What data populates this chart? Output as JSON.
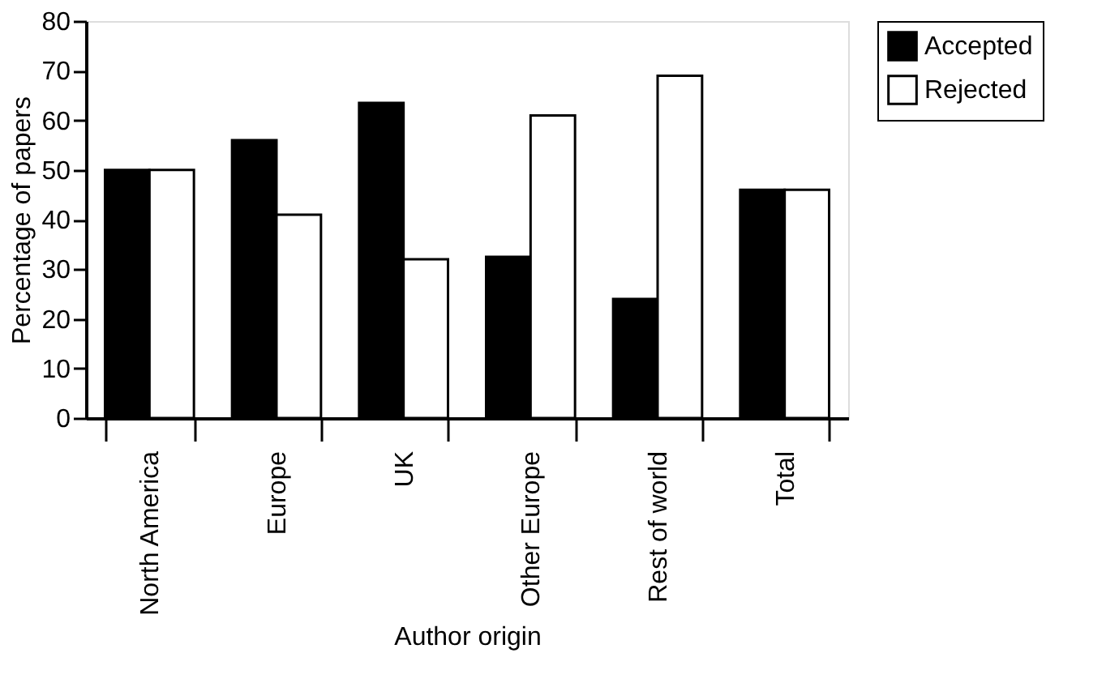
{
  "chart_data": {
    "type": "bar",
    "xlabel": "Author origin",
    "ylabel": "Percentage of papers",
    "categories": [
      "North America",
      "Europe",
      "UK",
      "Other Europe",
      "Rest of world",
      "Total"
    ],
    "series": [
      {
        "name": "Accepted",
        "color": "#000000",
        "values": [
          50,
          56,
          63.5,
          32.5,
          24,
          46
        ]
      },
      {
        "name": "Rejected",
        "color": "#ffffff",
        "values": [
          50,
          41,
          32,
          61,
          69,
          46
        ]
      }
    ],
    "ylim": [
      0,
      80
    ],
    "yticks": [
      0,
      10,
      20,
      30,
      40,
      50,
      60,
      70,
      80
    ],
    "grid": false,
    "legend": "right"
  }
}
